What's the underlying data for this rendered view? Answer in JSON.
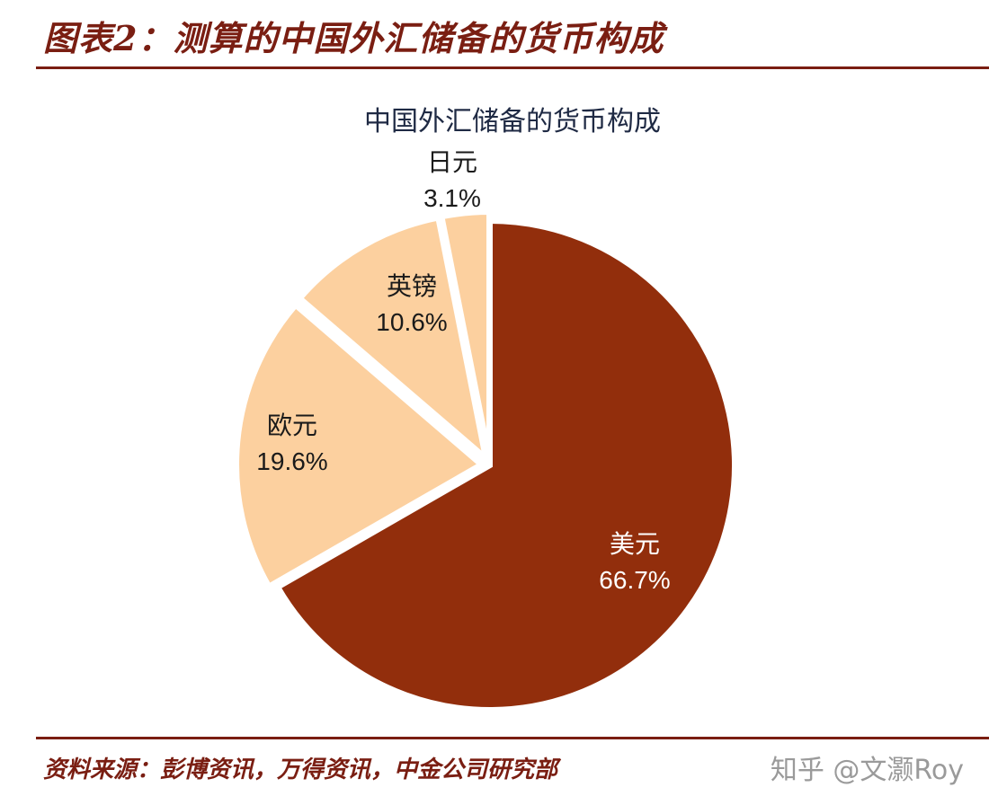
{
  "figure": {
    "title": "图表2：测算的中国外汇储备的货币构成",
    "source": "资料来源：彭博资讯，万得资讯，中金公司研究部",
    "watermark": "知乎 @文灏Roy"
  },
  "chart_data": {
    "type": "pie",
    "title": "中国外汇储备的货币构成",
    "slices": [
      {
        "label": "美元",
        "value": 66.7,
        "value_label": "66.7%",
        "color": "#922e0c"
      },
      {
        "label": "欧元",
        "value": 19.6,
        "value_label": "19.6%",
        "color": "#fcd09f"
      },
      {
        "label": "英镑",
        "value": 10.6,
        "value_label": "10.6%",
        "color": "#fcd09f"
      },
      {
        "label": "日元",
        "value": 3.1,
        "value_label": "3.1%",
        "color": "#fcd09f"
      }
    ],
    "legend": "none"
  }
}
